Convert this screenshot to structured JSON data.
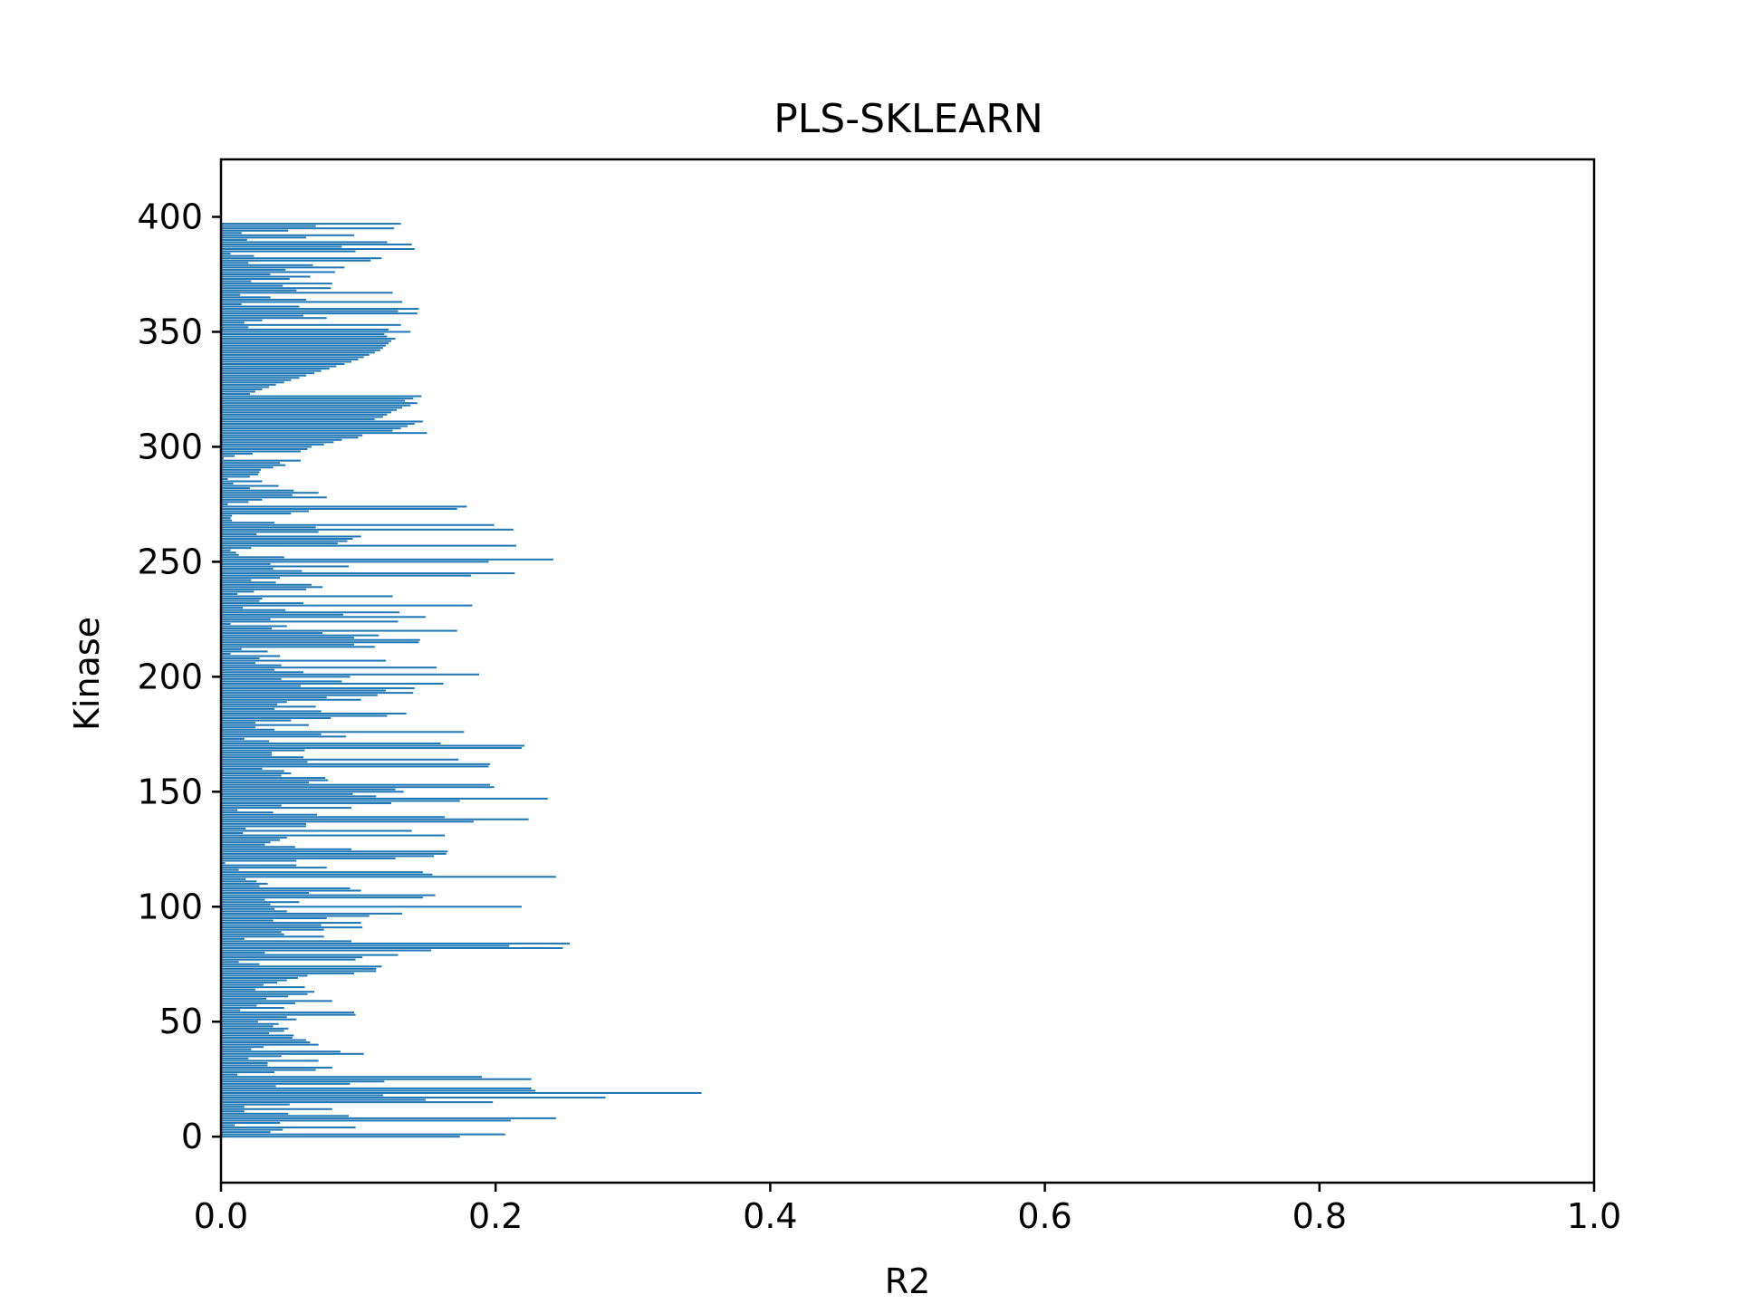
{
  "chart_data": {
    "type": "bar",
    "orientation": "horizontal",
    "title": "PLS-SKLEARN",
    "xlabel": "R2",
    "ylabel": "Kinase",
    "xlim": [
      0.0,
      1.0
    ],
    "ylim": [
      -20,
      425
    ],
    "xticks": [
      "0.0",
      "0.2",
      "0.4",
      "0.6",
      "0.8",
      "1.0"
    ],
    "yticks": [
      "0",
      "50",
      "100",
      "150",
      "200",
      "250",
      "300",
      "350",
      "400"
    ],
    "grid": false,
    "bar_color": "#1f77b4",
    "values": [
      0.174,
      0.207,
      0.036,
      0.045,
      0.098,
      0.01,
      0.043,
      0.211,
      0.244,
      0.093,
      0.049,
      0.017,
      0.081,
      0.017,
      0.05,
      0.198,
      0.149,
      0.28,
      0.118,
      0.35,
      0.229,
      0.226,
      0.04,
      0.094,
      0.119,
      0.226,
      0.19,
      0.012,
      0.039,
      0.069,
      0.081,
      0.034,
      0.034,
      0.071,
      0.02,
      0.044,
      0.104,
      0.087,
      0.022,
      0.031,
      0.071,
      0.065,
      0.062,
      0.052,
      0.053,
      0.035,
      0.046,
      0.049,
      0.038,
      0.042,
      0.027,
      0.055,
      0.048,
      0.098,
      0.097,
      0.014,
      0.046,
      0.026,
      0.054,
      0.081,
      0.033,
      0.049,
      0.063,
      0.068,
      0.025,
      0.061,
      0.031,
      0.041,
      0.048,
      0.056,
      0.063,
      0.097,
      0.113,
      0.113,
      0.117,
      0.028,
      0.013,
      0.098,
      0.103,
      0.129,
      0.032,
      0.153,
      0.249,
      0.21,
      0.254,
      0.095,
      0.017,
      0.075,
      0.046,
      0.044,
      0.075,
      0.103,
      0.073,
      0.102,
      0.038,
      0.077,
      0.108,
      0.132,
      0.048,
      0.039,
      0.219,
      0.036,
      0.057,
      0.032,
      0.147,
      0.156,
      0.064,
      0.102,
      0.094,
      0.028,
      0.034,
      0.026,
      0.018,
      0.244,
      0.154,
      0.147,
      0.013,
      0.077,
      0.055,
      0.003,
      0.055,
      0.127,
      0.155,
      0.164,
      0.165,
      0.095,
      0.054,
      0.032,
      0.036,
      0.043,
      0.048,
      0.163,
      0.016,
      0.139,
      0.018,
      0.062,
      0.062,
      0.184,
      0.224,
      0.163,
      0.07,
      0.038,
      0.012,
      0.095,
      0.044,
      0.124,
      0.174,
      0.238,
      0.113,
      0.096,
      0.133,
      0.127,
      0.199,
      0.196,
      0.064,
      0.078,
      0.076,
      0.044,
      0.051,
      0.046,
      0.03,
      0.195,
      0.196,
      0.063,
      0.173,
      0.06,
      0.037,
      0.037,
      0.061,
      0.219,
      0.221,
      0.16,
      0.035,
      0.017,
      0.091,
      0.073,
      0.177,
      0.039,
      0.025,
      0.064,
      0.025,
      0.051,
      0.08,
      0.121,
      0.135,
      0.073,
      0.039,
      0.069,
      0.041,
      0.048,
      0.102,
      0.077,
      0.114,
      0.14,
      0.12,
      0.141,
      0.058,
      0.162,
      0.088,
      0.044,
      0.094,
      0.188,
      0.06,
      0.039,
      0.157,
      0.044,
      0.025,
      0.12,
      0.028,
      0.043,
      0.007,
      0.034,
      0.015,
      0.112,
      0.097,
      0.144,
      0.145,
      0.097,
      0.115,
      0.074,
      0.172,
      0.037,
      0.048,
      0.007,
      0.129,
      0.036,
      0.149,
      0.089,
      0.13,
      0.047,
      0.016,
      0.183,
      0.06,
      0.028,
      0.03,
      0.125,
      0.012,
      0.024,
      0.062,
      0.074,
      0.066,
      0.04,
      0.022,
      0.043,
      0.182,
      0.214,
      0.059,
      0.038,
      0.093,
      0.036,
      0.195,
      0.242,
      0.046,
      0.013,
      0.011,
      0.007,
      0.022,
      0.215,
      0.085,
      0.092,
      0.096,
      0.102,
      0.026,
      0.071,
      0.213,
      0.069,
      0.199,
      0.039,
      0.008,
      0.007,
      0.008,
      0.051,
      0.064,
      0.172,
      0.179,
      0.005,
      0.02,
      0.03,
      0.077,
      0.052,
      0.071,
      0.053,
      0.021,
      0.042,
      0.009,
      0.03,
      0.005,
      0.021,
      0.027,
      0.028,
      0.029,
      0.038,
      0.047,
      0.043,
      0.058,
      0.002,
      0.01,
      0.023,
      0.058,
      0.063,
      0.066,
      0.075,
      0.082,
      0.088,
      0.1,
      0.103,
      0.15,
      0.125,
      0.131,
      0.136,
      0.141,
      0.147,
      0.112,
      0.118,
      0.121,
      0.124,
      0.128,
      0.132,
      0.138,
      0.143,
      0.134,
      0.14,
      0.146,
      0.021,
      0.025,
      0.03,
      0.035,
      0.04,
      0.046,
      0.051,
      0.057,
      0.062,
      0.068,
      0.073,
      0.079,
      0.084,
      0.09,
      0.095,
      0.1,
      0.104,
      0.108,
      0.112,
      0.116,
      0.118,
      0.12,
      0.122,
      0.124,
      0.127,
      0.121,
      0.119,
      0.138,
      0.122,
      0.02,
      0.131,
      0.017,
      0.03,
      0.077,
      0.06,
      0.143,
      0.129,
      0.144,
      0.057,
      0.015,
      0.132,
      0.062,
      0.036,
      0.014,
      0.125,
      0.055,
      0.08,
      0.045,
      0.081,
      0.022,
      0.05,
      0.065,
      0.036,
      0.083,
      0.047,
      0.09,
      0.067,
      0.02,
      0.109,
      0.117,
      0.024,
      0.007,
      0.098,
      0.141,
      0.088,
      0.139,
      0.121,
      0.019,
      0.062,
      0.097,
      0.015,
      0.049,
      0.126,
      0.069,
      0.131
    ]
  }
}
